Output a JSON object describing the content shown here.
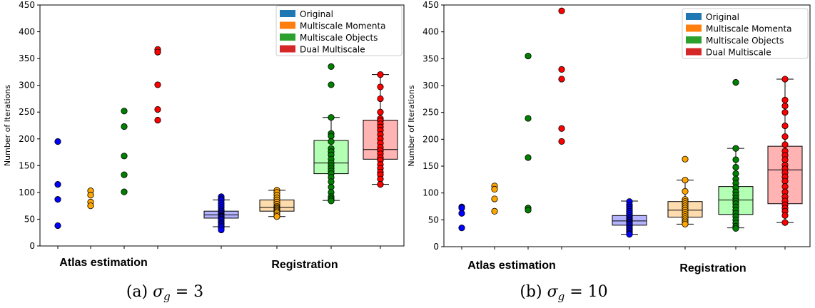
{
  "chart_data": [
    {
      "type": "box+strip",
      "caption": {
        "prefix": "(a) ",
        "symbol": "σ",
        "subscript": "g",
        "rest": " = 3"
      },
      "ylabel": "Number of Iterations",
      "ylim": [
        0,
        450
      ],
      "yticks": [
        "0",
        "50",
        "100",
        "150",
        "200",
        "250",
        "300",
        "350",
        "400",
        "450"
      ],
      "groups": [
        "Atlas estimation",
        "Registration"
      ],
      "legend": {
        "placement": "top-right"
      },
      "series": [
        {
          "name": "Original",
          "color": "#1f77b4",
          "point_color": "#0000ff",
          "box_color": "#b3b3ff"
        },
        {
          "name": "Multiscale Momenta",
          "color": "#ff7f0e",
          "point_color": "#ffa500",
          "box_color": "#ffdcae"
        },
        {
          "name": "Multiscale Objects",
          "color": "#2ca02c",
          "point_color": "#008000",
          "box_color": "#b3ffb3"
        },
        {
          "name": "Dual Multiscale",
          "color": "#d62728",
          "point_color": "#ff0000",
          "box_color": "#ffb3b3"
        }
      ],
      "atlas": [
        {
          "points": [
            195,
            115,
            87,
            38
          ]
        },
        {
          "points": [
            103,
            95,
            82,
            75
          ]
        },
        {
          "points": [
            252,
            223,
            168,
            133,
            101
          ]
        },
        {
          "points": [
            367,
            362,
            301,
            255,
            235
          ]
        }
      ],
      "registration": [
        {
          "box": {
            "q1": 52,
            "median": 58,
            "q3": 65,
            "whislo": 36,
            "whishi": 86
          },
          "points": [
            92,
            88,
            85,
            80,
            76,
            72,
            68,
            65,
            62,
            60,
            58,
            56,
            55,
            54,
            52,
            50,
            48,
            45,
            42,
            40,
            37,
            34,
            30
          ]
        },
        {
          "box": {
            "q1": 65,
            "median": 72,
            "q3": 86,
            "whislo": 55,
            "whishi": 104
          },
          "points": [
            104,
            100,
            95,
            90,
            86,
            82,
            78,
            74,
            72,
            70,
            68,
            66,
            64,
            62,
            58,
            55
          ]
        },
        {
          "box": {
            "q1": 135,
            "median": 155,
            "q3": 197,
            "whislo": 85,
            "whishi": 240
          },
          "points": [
            335,
            301,
            240,
            210,
            205,
            195,
            182,
            176,
            170,
            162,
            155,
            150,
            145,
            140,
            135,
            128,
            120,
            110,
            100,
            92,
            88,
            84
          ]
        },
        {
          "box": {
            "q1": 162,
            "median": 180,
            "q3": 235,
            "whislo": 115,
            "whishi": 320
          },
          "points": [
            320,
            297,
            275,
            250,
            238,
            234,
            228,
            222,
            216,
            208,
            200,
            192,
            184,
            178,
            172,
            165,
            160,
            152,
            145,
            138,
            133,
            125,
            115
          ]
        }
      ]
    },
    {
      "type": "box+strip",
      "caption": {
        "prefix": "(b) ",
        "symbol": "σ",
        "subscript": "g",
        "rest": " = 10"
      },
      "ylabel": "Number of Iterations",
      "ylim": [
        0,
        450
      ],
      "yticks": [
        "0",
        "50",
        "100",
        "150",
        "200",
        "250",
        "300",
        "350",
        "400",
        "450"
      ],
      "groups": [
        "Atlas estimation",
        "Registration"
      ],
      "legend": {
        "placement": "top-right"
      },
      "series": [
        {
          "name": "Original",
          "color": "#1f77b4",
          "point_color": "#0000ff",
          "box_color": "#b3b3ff"
        },
        {
          "name": "Multiscale Momenta",
          "color": "#ff7f0e",
          "point_color": "#ffa500",
          "box_color": "#ffdcae"
        },
        {
          "name": "Multiscale Objects",
          "color": "#2ca02c",
          "point_color": "#008000",
          "box_color": "#b3ffb3"
        },
        {
          "name": "Dual Multiscale",
          "color": "#d62728",
          "point_color": "#ff0000",
          "box_color": "#ffb3b3"
        }
      ],
      "atlas": [
        {
          "points": [
            74,
            72,
            62,
            35
          ]
        },
        {
          "points": [
            113,
            107,
            89,
            66
          ]
        },
        {
          "points": [
            355,
            239,
            166,
            72,
            68
          ]
        },
        {
          "points": [
            439,
            330,
            312,
            220,
            196
          ]
        }
      ],
      "registration": [
        {
          "box": {
            "q1": 40,
            "median": 48,
            "q3": 58,
            "whislo": 23,
            "whishi": 85
          },
          "points": [
            84,
            78,
            74,
            70,
            66,
            62,
            58,
            55,
            52,
            50,
            48,
            46,
            44,
            42,
            40,
            37,
            34,
            31,
            28,
            25,
            23
          ]
        },
        {
          "box": {
            "q1": 55,
            "median": 68,
            "q3": 84,
            "whislo": 42,
            "whishi": 124
          },
          "points": [
            163,
            124,
            103,
            88,
            84,
            80,
            76,
            72,
            68,
            64,
            60,
            56,
            52,
            48,
            45,
            42
          ]
        },
        {
          "box": {
            "q1": 60,
            "median": 87,
            "q3": 112,
            "whislo": 35,
            "whishi": 183
          },
          "points": [
            306,
            183,
            162,
            148,
            136,
            126,
            118,
            110,
            102,
            96,
            90,
            85,
            80,
            74,
            68,
            62,
            56,
            50,
            44,
            38,
            34
          ]
        },
        {
          "box": {
            "q1": 80,
            "median": 143,
            "q3": 187,
            "whislo": 45,
            "whishi": 312
          },
          "points": [
            312,
            273,
            262,
            250,
            225,
            205,
            190,
            178,
            170,
            162,
            152,
            145,
            138,
            130,
            122,
            112,
            102,
            93,
            85,
            78,
            72,
            66,
            58,
            45
          ]
        }
      ]
    }
  ]
}
